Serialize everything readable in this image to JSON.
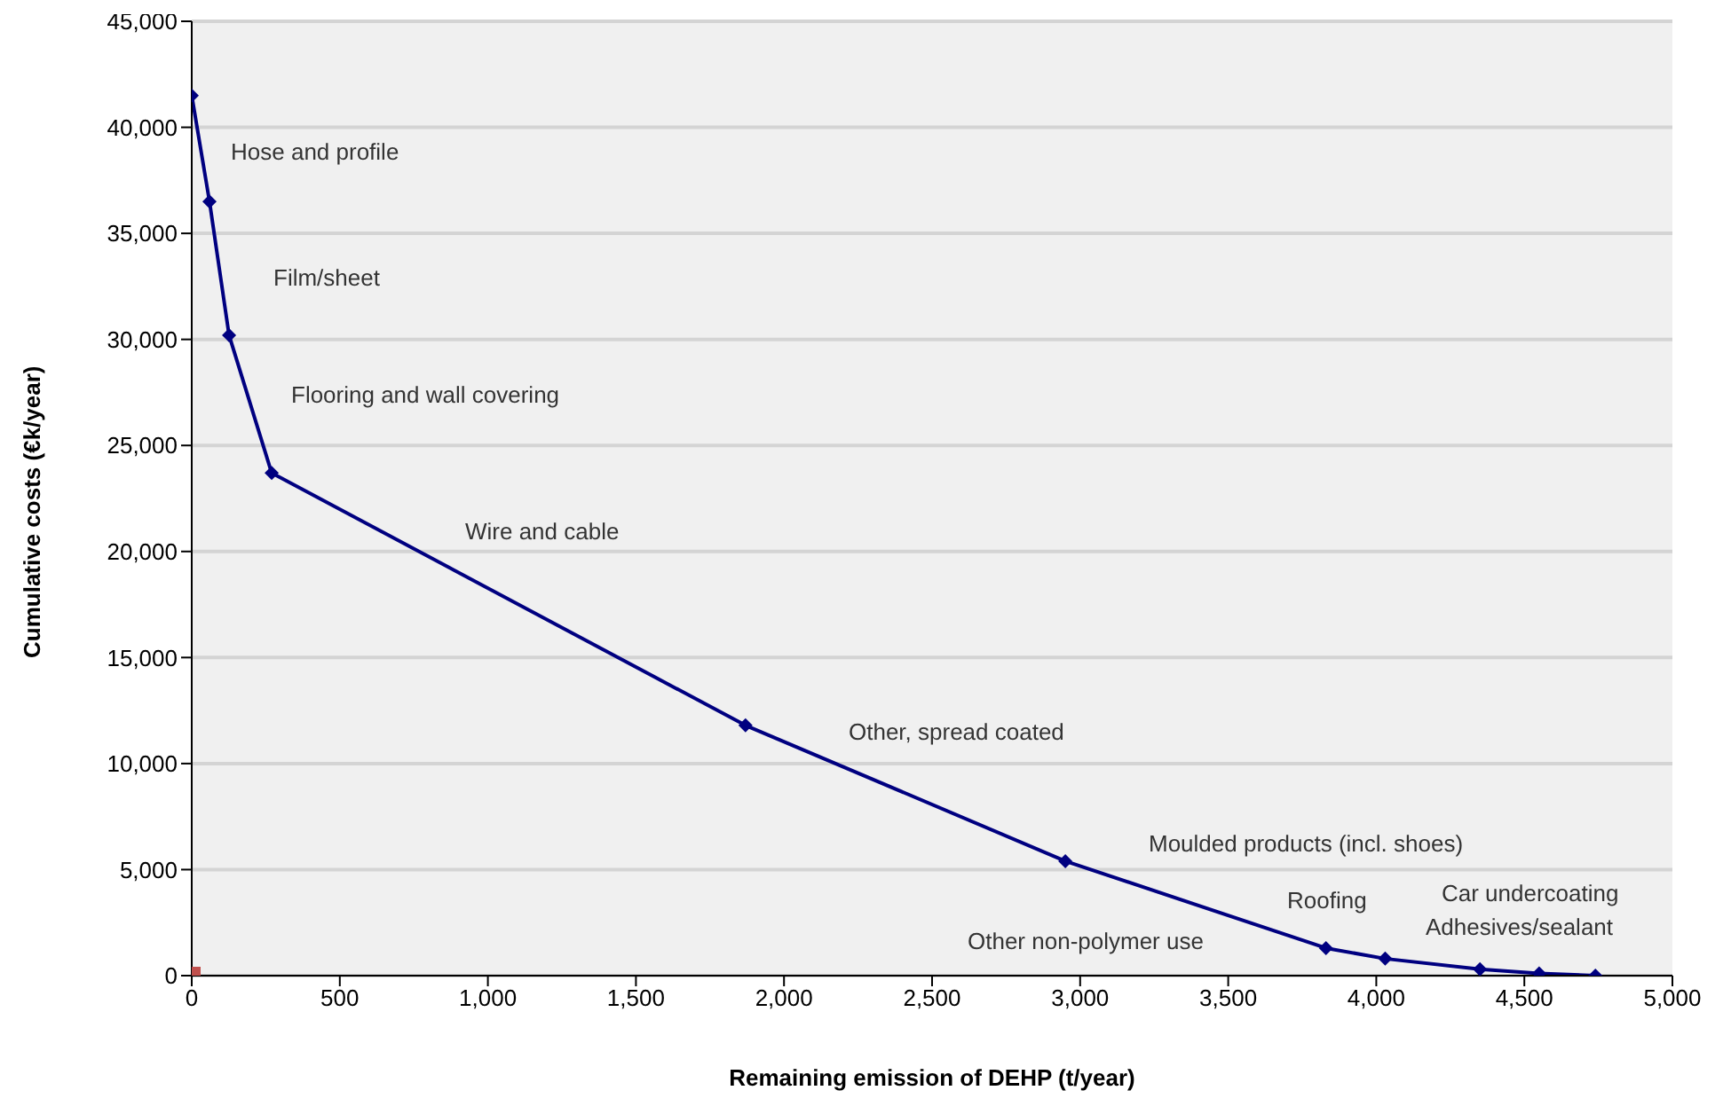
{
  "chart_data": {
    "type": "line",
    "xlabel": "Remaining emission of DEHP (t/year)",
    "ylabel": "Cumulative costs (€k/year)",
    "xlim": [
      0,
      5000
    ],
    "xticks": [
      {
        "value": 0,
        "label": "0"
      },
      {
        "value": 500,
        "label": "500"
      },
      {
        "value": 1000,
        "label": "1,000"
      },
      {
        "value": 1500,
        "label": "1,500"
      },
      {
        "value": 2000,
        "label": "2,000"
      },
      {
        "value": 2500,
        "label": "2,500"
      },
      {
        "value": 3000,
        "label": "3,000"
      },
      {
        "value": 3500,
        "label": "3,500"
      },
      {
        "value": 4000,
        "label": "4,000"
      },
      {
        "value": 4500,
        "label": "4,500"
      },
      {
        "value": 5000,
        "label": "5,000"
      }
    ],
    "ylim": [
      0,
      45000
    ],
    "yticks": [
      {
        "value": 0,
        "label": "0"
      },
      {
        "value": 5000,
        "label": "5,000"
      },
      {
        "value": 10000,
        "label": "10,000"
      },
      {
        "value": 15000,
        "label": "15,000"
      },
      {
        "value": 20000,
        "label": "20,000"
      },
      {
        "value": 25000,
        "label": "25,000"
      },
      {
        "value": 30000,
        "label": "30,000"
      },
      {
        "value": 35000,
        "label": "35,000"
      },
      {
        "value": 40000,
        "label": "40,000"
      },
      {
        "value": 45000,
        "label": "45,000"
      }
    ],
    "grid": "y",
    "series": [
      {
        "color": "#000080",
        "marker": "diamond",
        "x": [
          0,
          60,
          126,
          270,
          1870,
          2950,
          3830,
          4030,
          4350,
          4550,
          4740
        ],
        "values": [
          41500,
          36500,
          30200,
          23700,
          11800,
          5400,
          1300,
          800,
          300,
          100,
          0
        ]
      },
      {
        "type": "scatter",
        "color": "#c0504d",
        "marker": "square",
        "x": [
          0
        ],
        "values": [
          0
        ]
      }
    ],
    "annotations": [
      "Hose and profile",
      "Film/sheet",
      "Flooring and wall covering",
      "Wire and cable",
      "Other, spread coated",
      "Moulded products (incl. shoes)",
      "Roofing",
      "Car undercoating",
      "Adhesives/sealant",
      "Other non-polymer use"
    ]
  }
}
